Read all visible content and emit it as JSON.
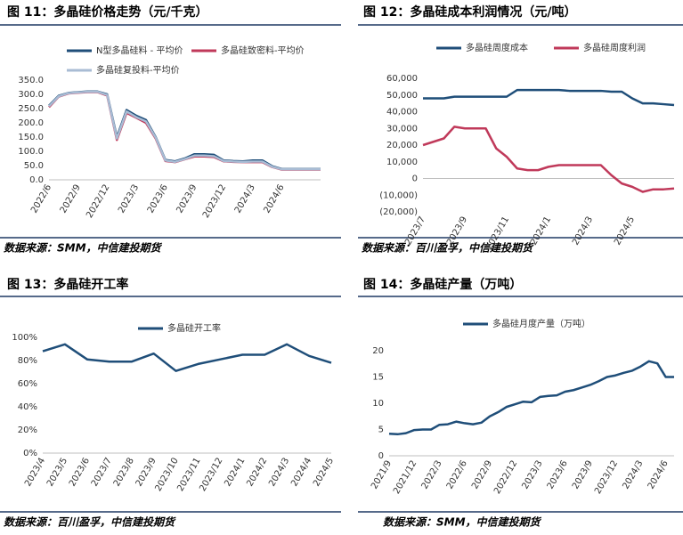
{
  "chart_data": [
    {
      "type": "line",
      "title": "图 11：多晶硅价格走势（元/千克）",
      "source": "数据来源：SMM，中信建投期货",
      "categories": [
        "2022/6",
        null,
        null,
        "2022/9",
        null,
        null,
        "2022/12",
        null,
        null,
        "2023/3",
        null,
        null,
        "2023/6",
        null,
        null,
        "2023/9",
        null,
        null,
        "2023/12",
        null,
        null,
        "2024/3",
        null,
        null,
        "2024/6",
        null,
        null,
        null,
        null
      ],
      "series": [
        {
          "name": "N型多晶硅料 - 平均价",
          "color": "#1f4e79",
          "values": [
            260,
            295,
            305,
            308,
            310,
            310,
            300,
            150,
            245,
            225,
            210,
            150,
            70,
            65,
            75,
            90,
            90,
            88,
            68,
            66,
            65,
            68,
            68,
            48,
            38,
            38,
            38,
            38,
            38
          ]
        },
        {
          "name": "多晶硅致密料-平均价",
          "color": "#c0395a",
          "values": [
            255,
            292,
            303,
            306,
            308,
            308,
            296,
            140,
            235,
            218,
            200,
            145,
            66,
            62,
            72,
            82,
            82,
            80,
            65,
            63,
            62,
            62,
            62,
            45,
            36,
            36,
            36,
            36,
            36
          ]
        },
        {
          "name": "多晶硅复投料-平均价",
          "color": "#a9bcd4",
          "values": [
            258,
            293,
            304,
            307,
            309,
            309,
            298,
            145,
            240,
            220,
            205,
            148,
            68,
            63,
            73,
            85,
            85,
            83,
            66,
            64,
            63,
            64,
            64,
            46,
            37,
            37,
            37,
            37,
            37
          ]
        }
      ],
      "ylim": [
        0,
        350
      ],
      "yticks": [
        {
          "value": 0,
          "label": "0.0"
        },
        {
          "value": 50,
          "label": "50.0"
        },
        {
          "value": 100,
          "label": "100.0"
        },
        {
          "value": 150,
          "label": "150.0"
        },
        {
          "value": 200,
          "label": "200.0"
        },
        {
          "value": 250,
          "label": "250.0"
        },
        {
          "value": 300,
          "label": "300.0"
        },
        {
          "value": 350,
          "label": "350.0"
        }
      ]
    },
    {
      "type": "line",
      "title": "图 12：多晶硅成本利润情况（元/吨）",
      "source": "数据来源：百川盈孚，中信建投期货",
      "categories": [
        "2023/7",
        null,
        null,
        null,
        "2023/9",
        null,
        null,
        null,
        "2023/11",
        null,
        null,
        null,
        "2024/1",
        null,
        null,
        null,
        "2024/3",
        null,
        null,
        null,
        "2024/5",
        null,
        null,
        null,
        null
      ],
      "series": [
        {
          "name": "多晶硅周度成本",
          "color": "#1f4e79",
          "values": [
            48000,
            48000,
            48000,
            49000,
            49000,
            49000,
            49000,
            49000,
            49000,
            53000,
            53000,
            53000,
            53000,
            53000,
            52500,
            52500,
            52500,
            52500,
            52000,
            52000,
            48000,
            45000,
            45000,
            44500,
            44000
          ]
        },
        {
          "name": "多晶硅周度利润",
          "color": "#c0395a",
          "values": [
            20000,
            22000,
            24000,
            31000,
            30000,
            30000,
            30000,
            18000,
            13000,
            6000,
            5000,
            5000,
            7000,
            8000,
            8000,
            8000,
            8000,
            8000,
            2000,
            -3000,
            -5000,
            -8000,
            -6500,
            -6500,
            -6000
          ]
        }
      ],
      "ylim": [
        -20000,
        60000
      ],
      "negative_label_color": "#c00000",
      "yticks": [
        {
          "value": -20000,
          "label": "(20,000)"
        },
        {
          "value": -10000,
          "label": "(10,000)"
        },
        0,
        {
          "value": 10000,
          "label": "10,000"
        },
        {
          "value": 20000,
          "label": "20,000"
        },
        {
          "value": 30000,
          "label": "30,000"
        },
        {
          "value": 40000,
          "label": "40,000"
        },
        {
          "value": 50000,
          "label": "50,000"
        },
        {
          "value": 60000,
          "label": "60,000"
        }
      ]
    },
    {
      "type": "line",
      "title": "图 13：多晶硅开工率",
      "source": "数据来源：百川盈孚，中信建投期货",
      "categories": [
        "2023/4",
        "2023/5",
        "2023/6",
        "2023/7",
        "2023/8",
        "2023/9",
        "2023/10",
        "2023/11",
        "2023/12",
        "2024/1",
        "2024/2",
        "2024/3",
        "2024/4",
        "2024/5"
      ],
      "series": [
        {
          "name": "多晶硅开工率",
          "color": "#1f4e79",
          "values": [
            88,
            94,
            81,
            79,
            79,
            86,
            71,
            77,
            81,
            85,
            85,
            94,
            84,
            78
          ]
        }
      ],
      "ylim": [
        0,
        100
      ],
      "yticks": [
        {
          "value": 0,
          "label": "0%"
        },
        {
          "value": 20,
          "label": "20%"
        },
        {
          "value": 40,
          "label": "40%"
        },
        {
          "value": 60,
          "label": "60%"
        },
        {
          "value": 80,
          "label": "80%"
        },
        {
          "value": 100,
          "label": "100%"
        }
      ]
    },
    {
      "type": "line",
      "title": "图 14：多晶硅产量（万吨）",
      "source": "数据来源：SMM，中信建投期货",
      "categories": [
        "2021/9",
        null,
        null,
        "2021/12",
        null,
        null,
        "2022/3",
        null,
        null,
        "2022/6",
        null,
        null,
        "2022/9",
        null,
        null,
        "2022/12",
        null,
        null,
        "2023/3",
        null,
        null,
        "2023/6",
        null,
        null,
        "2023/9",
        null,
        null,
        "2023/12",
        null,
        null,
        "2024/3",
        null,
        null,
        "2024/6",
        null
      ],
      "series": [
        {
          "name": "多晶硅月度产量（万吨）",
          "color": "#1f4e79",
          "values": [
            4.2,
            4.1,
            4.3,
            4.9,
            5.0,
            5.0,
            5.9,
            6.0,
            6.5,
            6.2,
            6.0,
            6.3,
            7.5,
            8.3,
            9.3,
            9.8,
            10.3,
            10.2,
            11.2,
            11.4,
            11.5,
            12.2,
            12.5,
            13.0,
            13.5,
            14.2,
            15.0,
            15.3,
            15.8,
            16.2,
            17.0,
            18.0,
            17.6,
            15.0,
            15.0
          ]
        }
      ],
      "ylim": [
        0,
        20
      ],
      "yticks": [
        0,
        5,
        10,
        15,
        20
      ]
    }
  ]
}
